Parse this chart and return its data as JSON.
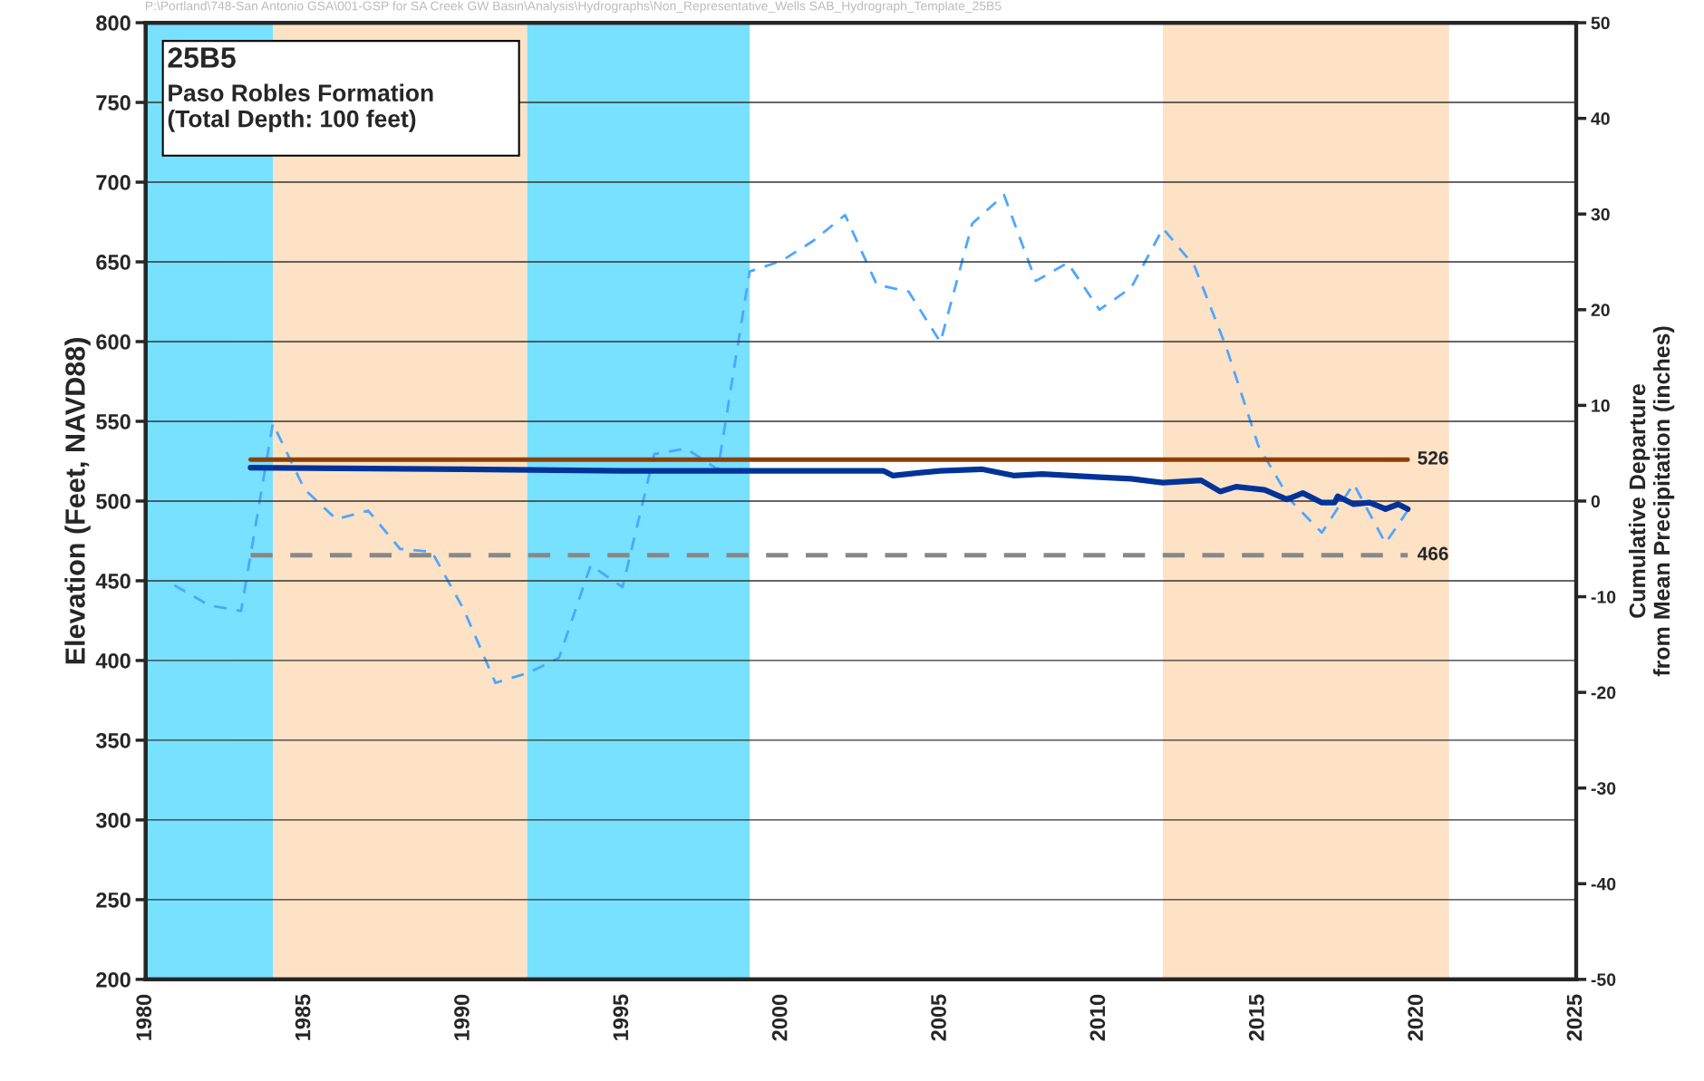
{
  "chart_data": {
    "type": "line",
    "ylabel": "Elevation (Feet, NAVD88)",
    "y2label": "Cumulative Departure\nfrom Mean Precipitation (inches)",
    "annotations": [
      "25B5",
      "Paso Robles Formation",
      "(Total Depth: 100 feet)",
      "P:\\Portland\\748-San Antonio GSA\\001-GSP for SA Creek GW Basin\\Analysis\\Hydrographs\\Non_Representative_Wells SAB_Hydrograph_Template_25B5"
    ],
    "xlim": [
      1980,
      2025
    ],
    "xticks": [
      1980,
      1985,
      1990,
      1995,
      2000,
      2005,
      2010,
      2015,
      2020,
      2025
    ],
    "ylim": [
      200,
      800
    ],
    "yticks": [
      200,
      250,
      300,
      350,
      400,
      450,
      500,
      550,
      600,
      650,
      700,
      750,
      800
    ],
    "y2lim": [
      -50,
      50
    ],
    "y2ticks": [
      -50,
      -40,
      -30,
      -20,
      -10,
      0,
      10,
      20,
      30,
      40,
      50
    ],
    "grid": "y",
    "series": [
      {
        "color": "#003399",
        "line_style": "solid",
        "x": [
          1983.3,
          1990,
          1995,
          2000,
          2003.2,
          2003.5,
          2005,
          2006.3,
          2007.3,
          2008.2,
          2010,
          2011,
          2012,
          2013.2,
          2013.8,
          2014.3,
          2015.2,
          2015.9,
          2016.4,
          2017,
          2017.4,
          2017.5,
          2018,
          2018.5,
          2019,
          2019.4,
          2019.7
        ],
        "values": [
          521,
          520,
          519,
          519,
          519,
          516,
          519,
          520,
          516,
          517,
          515,
          514,
          511.5,
          513,
          506,
          509,
          507,
          501,
          505,
          499,
          499,
          503,
          498,
          499,
          495,
          498,
          495
        ]
      },
      {
        "color": "#4da6ff",
        "line_style": "dashed",
        "axis": "y2",
        "x": [
          1980.9,
          1982,
          1983,
          1984,
          1985,
          1986,
          1987,
          1988,
          1989,
          1990,
          1991,
          1992,
          1993,
          1994,
          1995,
          1996,
          1997,
          1998,
          1999,
          2000,
          2001,
          2002,
          2003,
          2004,
          2005,
          2006,
          2007,
          2008,
          2009,
          2010,
          2011,
          2012,
          2013,
          2014,
          2015,
          2016,
          2017,
          2018,
          2019,
          2019.7
        ],
        "values": [
          -8.8,
          -10.9,
          -11.5,
          8.1,
          1.2,
          -1.9,
          -1,
          -5,
          -5.3,
          -11.3,
          -19,
          -18,
          -16.4,
          -6.7,
          -9,
          4.9,
          5.5,
          3.3,
          24,
          25.1,
          27.2,
          29.9,
          22.6,
          21.9,
          16.6,
          29,
          32,
          23,
          24.9,
          20,
          22.3,
          28.5,
          24.5,
          16,
          5.8,
          0.1,
          -3.3,
          1.8,
          -4.4,
          -1
        ]
      }
    ],
    "ref_lines": [
      {
        "axis": "y",
        "value": 526,
        "label": "526",
        "color": "#8b4000",
        "line_style": "solid"
      },
      {
        "axis": "y",
        "value": 466,
        "label": "466",
        "color": "#888888",
        "line_style": "dashed"
      }
    ],
    "bands": [
      {
        "axis": "x",
        "from": 1980,
        "to": 1984,
        "color": "#77e1ff"
      },
      {
        "axis": "x",
        "from": 1984,
        "to": 1992,
        "color": "#fde2c6"
      },
      {
        "axis": "x",
        "from": 1992,
        "to": 1999,
        "color": "#77e1ff"
      },
      {
        "axis": "x",
        "from": 2012,
        "to": 2021,
        "color": "#fde2c6"
      }
    ]
  }
}
